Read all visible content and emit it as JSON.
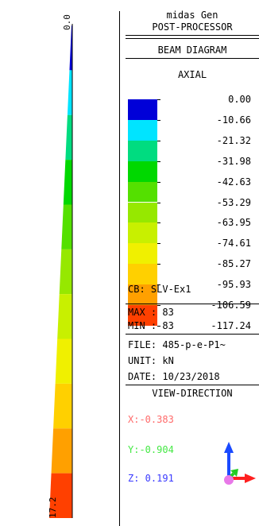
{
  "diagram": {
    "top_label": "0.0",
    "bottom_label": "17.2"
  },
  "panel": {
    "app_name": "midas Gen",
    "module": "POST-PROCESSOR",
    "diagram_type": "BEAM DIAGRAM",
    "result_type": "AXIAL",
    "legend": {
      "colors": [
        "#0000d8",
        "#00e4ff",
        "#00dc80",
        "#00d800",
        "#54e000",
        "#96e800",
        "#c8f000",
        "#f0f000",
        "#ffd000",
        "#ffa000",
        "#ff4000"
      ],
      "values": [
        "0.00",
        "-10.66",
        "-21.32",
        "-31.98",
        "-42.63",
        "-53.29",
        "-63.95",
        "-74.61",
        "-85.27",
        "-95.93",
        "-106.59",
        "-117.24"
      ]
    },
    "cb": "CB: SLV-Ex1",
    "max": "MAX : 83",
    "min": "MIN : 83",
    "file": "FILE: 485-p-e-P1~",
    "unit": "UNIT: kN",
    "date": "DATE: 10/23/2018",
    "view_direction": "VIEW-DIRECTION",
    "x": "X:-0.383",
    "y": "Y:-0.904",
    "z": "Z: 0.191",
    "x_color": "#ff6a6a",
    "y_color": "#44e844",
    "z_color": "#3a3aff"
  }
}
